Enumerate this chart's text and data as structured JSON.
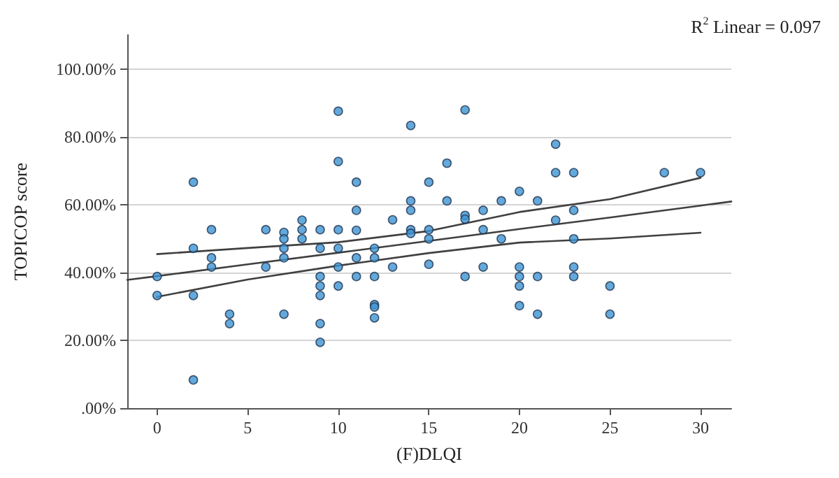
{
  "chart_data": {
    "type": "scatter",
    "xlabel": "(F)DLQI",
    "ylabel": "TOPICOP score",
    "annotations": [
      "R$^{2}$ Linear = 0.097"
    ],
    "xlim": [
      -1.65,
      31.7
    ],
    "xticks": [
      0,
      5,
      10,
      15,
      20,
      25,
      30
    ],
    "ylim": [
      0,
      110
    ],
    "yticks": [
      {
        "value": 0,
        "label": ".00%"
      },
      {
        "value": 20,
        "label": "20.00%"
      },
      {
        "value": 40,
        "label": "40.00%"
      },
      {
        "value": 60,
        "label": "60.00%"
      },
      {
        "value": 80,
        "label": "80.00%"
      },
      {
        "value": 100,
        "label": "100.00%"
      }
    ],
    "grid": "y",
    "marker": "circle",
    "series": [
      {
        "color": "#3d93d3",
        "x": [
          0,
          0,
          2,
          2,
          2,
          2,
          3,
          3,
          3,
          4,
          4,
          6,
          6,
          7,
          7,
          7,
          7,
          7,
          8,
          8,
          8,
          9,
          9,
          9,
          9,
          9,
          9,
          9,
          10,
          10,
          10,
          10,
          10,
          10,
          11,
          11,
          11,
          11,
          11,
          12,
          12,
          12,
          12,
          12,
          12,
          13,
          13,
          14,
          14,
          14,
          14,
          14,
          15,
          15,
          15,
          15,
          16,
          16,
          17,
          17,
          17,
          17,
          18,
          18,
          18,
          19,
          19,
          20,
          20,
          20,
          20,
          20,
          21,
          21,
          21,
          22,
          22,
          22,
          23,
          23,
          23,
          23,
          23,
          25,
          25,
          28,
          30
        ],
        "values": [
          38.8,
          33.2,
          66.6,
          47.1,
          33.2,
          8.3,
          52.6,
          44.3,
          41.6,
          27.7,
          24.9,
          52.6,
          41.6,
          51.8,
          49.9,
          47.1,
          44.3,
          27.7,
          55.4,
          52.6,
          49.9,
          52.6,
          47.1,
          38.8,
          36.0,
          33.2,
          24.9,
          19.4,
          87.5,
          72.7,
          52.6,
          47.1,
          41.6,
          36.0,
          66.6,
          58.3,
          52.4,
          44.3,
          38.8,
          47.1,
          44.3,
          38.8,
          30.5,
          29.8,
          26.6,
          55.5,
          41.6,
          83.3,
          61.1,
          58.3,
          52.6,
          51.5,
          66.6,
          52.6,
          49.9,
          42.4,
          72.2,
          61.1,
          87.9,
          56.8,
          55.7,
          38.8,
          58.3,
          52.6,
          41.6,
          61.1,
          49.9,
          63.9,
          41.6,
          38.8,
          36.0,
          30.2,
          61.1,
          38.8,
          27.7,
          77.8,
          69.4,
          55.4,
          69.4,
          58.3,
          49.9,
          41.6,
          38.8,
          36.0,
          27.7,
          69.4,
          69.4
        ]
      },
      {
        "type": "line",
        "color": "#404040",
        "marker": "none",
        "x": [
          -1.65,
          0,
          5,
          10,
          15,
          20,
          25,
          30,
          31.7
        ],
        "values": [
          37.8,
          38.9,
          42.4,
          45.8,
          49.3,
          52.8,
          56.2,
          59.7,
          60.9
        ]
      },
      {
        "type": "line",
        "color": "#404040",
        "marker": "none",
        "x": [
          0,
          5,
          10,
          15,
          20,
          25,
          30
        ],
        "values": [
          32.8,
          37.9,
          42.0,
          45.7,
          48.8,
          50.0,
          51.7
        ]
      },
      {
        "type": "line",
        "color": "#404040",
        "marker": "none",
        "x": [
          0,
          5,
          10,
          15,
          20,
          25,
          30
        ],
        "values": [
          45.4,
          47.2,
          48.9,
          52.2,
          57.8,
          61.6,
          67.9
        ]
      }
    ]
  }
}
